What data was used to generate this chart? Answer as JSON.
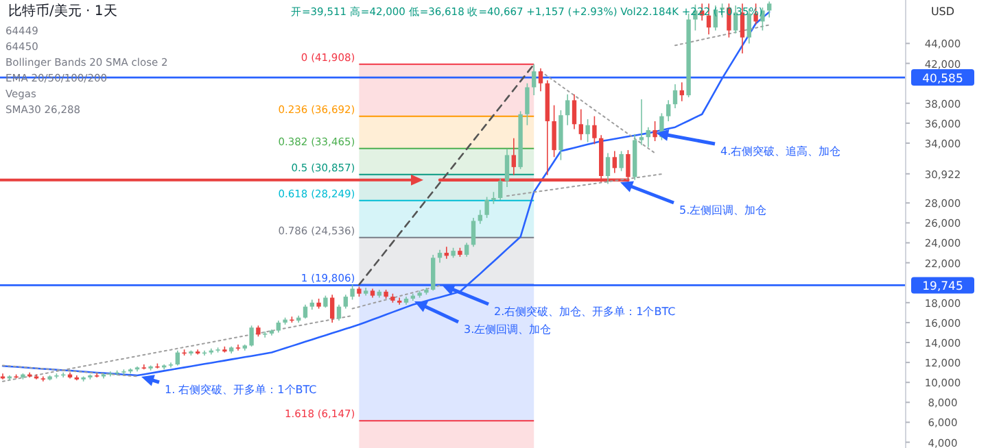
{
  "chart_data": {
    "type": "candlestick",
    "title": "比特币/美元 · 1天",
    "subtitle": "开=39,511 高=42,000 低=36,618 收=40,667 +1,157 (+2.93%) Vol22.184K +222 (+0.35%)",
    "ylabel": "USD",
    "categories": [
      null,
      null,
      null,
      null,
      null,
      null,
      null,
      null,
      null,
      null,
      null,
      null,
      null,
      null,
      null,
      null,
      null,
      null,
      null,
      null,
      null,
      null,
      null,
      null,
      null,
      null,
      null,
      null,
      null,
      null,
      null,
      null,
      null,
      null,
      null,
      null,
      null,
      null,
      null,
      null,
      null,
      null,
      null,
      null,
      null,
      null,
      null,
      null,
      null,
      null,
      null,
      null,
      null,
      null,
      null,
      null,
      null,
      null,
      null,
      null,
      null,
      null,
      null,
      null,
      null,
      null,
      null,
      null,
      null,
      null,
      null,
      null,
      null,
      null,
      null,
      null,
      null,
      null,
      null,
      null,
      null,
      null,
      null,
      null,
      null,
      null,
      null,
      null,
      null,
      null,
      null,
      null,
      null,
      null,
      null,
      null,
      null,
      null,
      null,
      null,
      null,
      null,
      null,
      null,
      null,
      null,
      null,
      null,
      null,
      null,
      null,
      null,
      null,
      null,
      null
    ],
    "ohlc": [
      [
        10600,
        10900,
        10300,
        10400
      ],
      [
        10400,
        10700,
        10200,
        10600
      ],
      [
        10600,
        10800,
        10400,
        10500
      ],
      [
        10500,
        10900,
        10300,
        10800
      ],
      [
        10800,
        11000,
        10500,
        10600
      ],
      [
        10600,
        10800,
        10300,
        10400
      ],
      [
        10400,
        10600,
        10100,
        10300
      ],
      [
        10300,
        10700,
        10200,
        10600
      ],
      [
        10600,
        10900,
        10400,
        10700
      ],
      [
        10700,
        11000,
        10500,
        10800
      ],
      [
        10800,
        11000,
        10400,
        10500
      ],
      [
        10500,
        10700,
        10200,
        10300
      ],
      [
        10300,
        10600,
        10100,
        10500
      ],
      [
        10500,
        10800,
        10300,
        10700
      ],
      [
        10700,
        10900,
        10500,
        10600
      ],
      [
        10600,
        10900,
        10400,
        10800
      ],
      [
        10800,
        11100,
        10600,
        10900
      ],
      [
        10900,
        11200,
        10700,
        11000
      ],
      [
        11000,
        11300,
        10800,
        11100
      ],
      [
        11100,
        11400,
        10900,
        11300
      ],
      [
        11300,
        11600,
        11100,
        11500
      ],
      [
        11500,
        11800,
        11300,
        11400
      ],
      [
        11400,
        11700,
        11200,
        11600
      ],
      [
        11600,
        11900,
        11400,
        11500
      ],
      [
        11500,
        11800,
        11300,
        11700
      ],
      [
        11700,
        12000,
        11500,
        11800
      ],
      [
        11800,
        13200,
        11700,
        13000
      ],
      [
        13000,
        13300,
        12700,
        12900
      ],
      [
        12900,
        13200,
        12700,
        13100
      ],
      [
        13100,
        13300,
        12800,
        12900
      ],
      [
        12900,
        13200,
        12700,
        13000
      ],
      [
        13000,
        13400,
        12800,
        13200
      ],
      [
        13200,
        13500,
        13000,
        13300
      ],
      [
        13300,
        13600,
        13000,
        13100
      ],
      [
        13100,
        13600,
        12900,
        13500
      ],
      [
        13500,
        13800,
        13200,
        13400
      ],
      [
        13400,
        13800,
        13200,
        13700
      ],
      [
        13700,
        15700,
        13600,
        15500
      ],
      [
        15500,
        15700,
        14600,
        14800
      ],
      [
        14800,
        15100,
        14500,
        14900
      ],
      [
        14900,
        15300,
        14700,
        15200
      ],
      [
        15200,
        16200,
        15000,
        16000
      ],
      [
        16000,
        16500,
        15800,
        16300
      ],
      [
        16300,
        16600,
        16000,
        16200
      ],
      [
        16200,
        16700,
        16000,
        16500
      ],
      [
        16500,
        17800,
        16400,
        17600
      ],
      [
        17600,
        18300,
        17300,
        18000
      ],
      [
        18000,
        18400,
        17400,
        17600
      ],
      [
        17600,
        18700,
        17500,
        18500
      ],
      [
        18500,
        18800,
        16000,
        16400
      ],
      [
        16400,
        17800,
        16200,
        17600
      ],
      [
        17600,
        18800,
        17400,
        18600
      ],
      [
        18600,
        19806,
        18300,
        19400
      ],
      [
        19400,
        19600,
        18600,
        18900
      ],
      [
        18900,
        19500,
        18700,
        19200
      ],
      [
        19200,
        19400,
        18500,
        18700
      ],
      [
        18700,
        19300,
        18500,
        19100
      ],
      [
        19100,
        19300,
        18400,
        18600
      ],
      [
        18600,
        18900,
        18000,
        18200
      ],
      [
        18200,
        18500,
        17800,
        18000
      ],
      [
        18000,
        18600,
        17800,
        18400
      ],
      [
        18400,
        18900,
        18200,
        18700
      ],
      [
        18700,
        19200,
        18500,
        19000
      ],
      [
        19000,
        19500,
        18800,
        19300
      ],
      [
        19300,
        22800,
        19200,
        22500
      ],
      [
        22500,
        23300,
        22000,
        23000
      ],
      [
        23000,
        23600,
        22400,
        22700
      ],
      [
        22700,
        23500,
        22500,
        23200
      ],
      [
        23200,
        23500,
        22600,
        22800
      ],
      [
        22800,
        24000,
        22600,
        23800
      ],
      [
        23800,
        26500,
        23600,
        26200
      ],
      [
        26200,
        27300,
        25900,
        26800
      ],
      [
        26800,
        28600,
        26500,
        28300
      ],
      [
        28300,
        29100,
        27900,
        28500
      ],
      [
        28500,
        30500,
        28300,
        30200
      ],
      [
        30200,
        33400,
        29600,
        32800
      ],
      [
        32800,
        34500,
        30800,
        31600
      ],
      [
        31600,
        37200,
        31400,
        36900
      ],
      [
        36900,
        40000,
        35800,
        39600
      ],
      [
        39600,
        41908,
        38800,
        41200
      ],
      [
        41200,
        41500,
        39200,
        40000
      ],
      [
        40000,
        40300,
        30800,
        36200
      ],
      [
        36200,
        37800,
        32600,
        33300
      ],
      [
        33300,
        37300,
        32300,
        36800
      ],
      [
        36800,
        38900,
        35800,
        38300
      ],
      [
        38300,
        38900,
        35400,
        35900
      ],
      [
        35900,
        37400,
        34300,
        34900
      ],
      [
        34900,
        36400,
        34100,
        35800
      ],
      [
        35800,
        36700,
        33900,
        34500
      ],
      [
        34500,
        34800,
        30100,
        30700
      ],
      [
        30700,
        33000,
        29900,
        32600
      ],
      [
        32600,
        33200,
        31000,
        31500
      ],
      [
        31500,
        33200,
        31200,
        32900
      ],
      [
        32900,
        33300,
        30100,
        30600
      ],
      [
        30600,
        34900,
        30300,
        34300
      ],
      [
        34300,
        38400,
        33800,
        34600
      ],
      [
        34600,
        35600,
        33600,
        35300
      ],
      [
        35300,
        36200,
        34200,
        34600
      ],
      [
        34600,
        37000,
        34300,
        36700
      ],
      [
        36700,
        38300,
        36200,
        37900
      ],
      [
        37900,
        39900,
        37500,
        39300
      ],
      [
        39300,
        40100,
        38200,
        38800
      ],
      [
        38800,
        47000,
        38600,
        46400
      ],
      [
        46400,
        47900,
        45300,
        47300
      ],
      [
        47300,
        48000,
        46300,
        46800
      ],
      [
        46800,
        48000,
        44900,
        45600
      ],
      [
        45600,
        47800,
        45300,
        47400
      ],
      [
        47400,
        48000,
        46600,
        47600
      ],
      [
        47600,
        48000,
        44600,
        45300
      ],
      [
        45300,
        47800,
        45000,
        47100
      ],
      [
        47100,
        48000,
        43000,
        44600
      ],
      [
        44600,
        47500,
        44000,
        47000
      ],
      [
        47000,
        48000,
        45900,
        46200
      ],
      [
        46200,
        47600,
        45300,
        47300
      ],
      [
        47300,
        48200,
        46600,
        48000
      ]
    ],
    "colors": [
      "#e8413f",
      "#79c3a5",
      "#e8413f",
      "#79c3a5",
      "#e8413f",
      "#e8413f",
      "#e8413f",
      "#79c3a5",
      "#79c3a5",
      "#79c3a5",
      "#e8413f",
      "#e8413f",
      "#79c3a5",
      "#79c3a5",
      "#e8413f",
      "#79c3a5",
      "#79c3a5",
      "#79c3a5",
      "#79c3a5",
      "#79c3a5",
      "#79c3a5",
      "#e8413f",
      "#79c3a5",
      "#e8413f",
      "#79c3a5",
      "#79c3a5",
      "#79c3a5",
      "#e8413f",
      "#79c3a5",
      "#e8413f",
      "#79c3a5",
      "#79c3a5",
      "#79c3a5",
      "#e8413f",
      "#79c3a5",
      "#e8413f",
      "#79c3a5",
      "#79c3a5",
      "#e8413f",
      "#79c3a5",
      "#79c3a5",
      "#79c3a5",
      "#79c3a5",
      "#e8413f",
      "#79c3a5",
      "#79c3a5",
      "#79c3a5",
      "#e8413f",
      "#79c3a5",
      "#e8413f",
      "#79c3a5",
      "#79c3a5",
      "#79c3a5",
      "#e8413f",
      "#79c3a5",
      "#e8413f",
      "#79c3a5",
      "#e8413f",
      "#e8413f",
      "#e8413f",
      "#79c3a5",
      "#79c3a5",
      "#79c3a5",
      "#79c3a5",
      "#79c3a5",
      "#79c3a5",
      "#e8413f",
      "#79c3a5",
      "#e8413f",
      "#79c3a5",
      "#79c3a5",
      "#79c3a5",
      "#79c3a5",
      "#79c3a5",
      "#79c3a5",
      "#79c3a5",
      "#e8413f",
      "#79c3a5",
      "#79c3a5",
      "#79c3a5",
      "#e8413f",
      "#e8413f",
      "#e8413f",
      "#79c3a5",
      "#79c3a5",
      "#e8413f",
      "#e8413f",
      "#79c3a5",
      "#e8413f",
      "#e8413f",
      "#79c3a5",
      "#e8413f",
      "#79c3a5",
      "#e8413f",
      "#79c3a5",
      "#79c3a5",
      "#79c3a5",
      "#e8413f",
      "#79c3a5",
      "#79c3a5",
      "#79c3a5",
      "#e8413f",
      "#79c3a5",
      "#79c3a5",
      "#e8413f",
      "#e8413f",
      "#79c3a5",
      "#79c3a5",
      "#e8413f",
      "#79c3a5",
      "#e8413f",
      "#79c3a5",
      "#e8413f",
      "#79c3a5",
      "#79c3a5"
    ],
    "series": [
      {
        "type": "line",
        "color": "#2962ff",
        "values": [
          11650,
          11600,
          11560,
          11510,
          11460,
          11410,
          11360,
          11320,
          11270,
          11220,
          11180,
          11130,
          11080,
          11030,
          10980,
          10940,
          10890,
          10840,
          10790,
          10750,
          10700,
          10810,
          10930,
          11040,
          11160,
          11270,
          11390,
          11500,
          11620,
          11730,
          11850,
          11960,
          12080,
          12190,
          12310,
          12420,
          12540,
          12650,
          12770,
          12880,
          13000,
          13220,
          13430,
          13650,
          13860,
          14080,
          14290,
          14510,
          14720,
          14940,
          15150,
          15370,
          15580,
          15800,
          16050,
          16300,
          16550,
          16800,
          17050,
          17300,
          17550,
          17800,
          17990,
          18170,
          18360,
          18540,
          18730,
          18910,
          19100,
          19700,
          20300,
          20900,
          21520,
          22130,
          22750,
          23370,
          23980,
          24600,
          26850,
          29100,
          30130,
          31150,
          32180,
          33200,
          33370,
          33530,
          33700,
          33870,
          34030,
          34200,
          34310,
          34430,
          34540,
          34660,
          34770,
          34890,
          35000,
          35150,
          35300,
          35450,
          35600,
          35930,
          36250,
          36580,
          36900,
          38100,
          39300,
          40500,
          41600,
          42700,
          43800,
          44900,
          46000,
          46580,
          47150
        ]
      },
      {
        "type": "line",
        "color": "#555555",
        "line_style": "dashed",
        "values": [
          null,
          null,
          null,
          null,
          null,
          null,
          null,
          null,
          null,
          null,
          null,
          null,
          null,
          null,
          null,
          null,
          null,
          null,
          null,
          null,
          null,
          null,
          null,
          null,
          null,
          null,
          null,
          null,
          null,
          null,
          null,
          null,
          null,
          null,
          null,
          null,
          null,
          null,
          null,
          null,
          null,
          null,
          null,
          null,
          null,
          null,
          null,
          null,
          null,
          null,
          null,
          null,
          null,
          19806,
          20656,
          21506,
          22356,
          23206,
          24056,
          24906,
          25756,
          26606,
          27456,
          28307,
          29157,
          30007,
          30857,
          31707,
          32557,
          33407,
          34257,
          35107,
          35957,
          36807,
          37657,
          38507,
          39357,
          40207,
          41058,
          41908,
          null,
          null,
          null,
          null,
          null,
          null,
          null,
          null,
          null,
          null,
          null,
          null,
          null,
          null,
          null,
          null,
          null,
          null,
          null,
          null,
          null,
          null,
          null,
          null,
          null,
          null,
          null,
          null,
          null,
          null,
          null,
          null,
          null,
          null,
          null
        ]
      },
      {
        "type": "line",
        "color": "#e8413f",
        "values": [
          null,
          null,
          null,
          null,
          null,
          null,
          null,
          null,
          null,
          null,
          null,
          null,
          null,
          null,
          null,
          null,
          null,
          null,
          null,
          null,
          null,
          null,
          null,
          null,
          null,
          null,
          null,
          null,
          null,
          null,
          null,
          null,
          null,
          null,
          null,
          null,
          null,
          null,
          null,
          null,
          null,
          null,
          null,
          null,
          null,
          null,
          null,
          null,
          null,
          null,
          null,
          null,
          null,
          null,
          null,
          null,
          null,
          null,
          null,
          null,
          null,
          null,
          null,
          null,
          null,
          30300,
          30300,
          30300,
          30300,
          30300,
          30300,
          30300,
          30300,
          30300,
          30300,
          30300,
          30300,
          30300,
          30300,
          30300,
          30300,
          30300,
          30300,
          30300,
          30300,
          30300,
          30300,
          30300,
          30300,
          30300,
          30300,
          30300,
          30300,
          30300,
          null,
          null,
          null,
          null,
          null,
          null,
          null,
          null,
          null,
          null,
          null,
          null,
          null,
          null,
          null,
          null,
          null,
          null,
          null,
          null,
          null
        ]
      },
      {
        "type": "line",
        "color": "#9e9e9e",
        "line_style": "dotted",
        "values": [
          11700,
          11645,
          11590,
          11535,
          11480,
          11425,
          11370,
          11315,
          11260,
          11205,
          11150,
          11095,
          11040,
          10985,
          10930,
          10875,
          10820,
          10765,
          10710,
          10655,
          10600,
          null,
          null,
          null,
          null,
          null,
          null,
          null,
          null,
          null,
          null,
          null,
          null,
          null,
          null,
          null,
          null,
          null,
          null,
          null,
          null,
          null,
          null,
          null,
          null,
          null,
          null,
          null,
          null,
          null,
          null,
          null,
          null,
          null,
          null,
          null,
          null,
          null,
          null,
          null,
          null,
          null,
          null,
          null,
          null,
          null,
          null,
          null,
          null,
          null,
          null,
          null,
          null,
          null,
          null,
          null,
          null,
          null,
          null,
          null,
          null,
          null,
          null,
          null,
          null,
          null,
          null,
          null,
          null,
          null,
          null,
          null,
          null,
          null,
          null,
          null,
          null,
          null,
          null,
          null,
          null,
          null,
          null,
          null,
          null,
          null,
          null,
          null,
          null,
          null,
          null,
          null,
          null,
          null,
          null
        ]
      },
      {
        "type": "line",
        "color": "#9e9e9e",
        "line_style": "dotted",
        "values": [
          10100,
          10230,
          10350,
          10480,
          10610,
          10730,
          10860,
          10990,
          11120,
          11240,
          11370,
          11500,
          11620,
          11750,
          11880,
          12000,
          12130,
          12260,
          12380,
          12510,
          12640,
          12770,
          12890,
          13020,
          13150,
          13270,
          13400,
          13530,
          13650,
          13780,
          13910,
          14030,
          14160,
          14290,
          14420,
          14540,
          14670,
          14800,
          14920,
          15050,
          15180,
          15300,
          15430,
          15560,
          15680,
          15810,
          15940,
          16070,
          16190,
          16320,
          16450,
          16570,
          16700,
          null,
          null,
          null,
          null,
          null,
          null,
          null,
          null,
          null,
          null,
          null,
          null,
          null,
          null,
          null,
          null,
          null,
          null,
          null,
          null,
          null,
          null,
          null,
          null,
          null,
          null,
          null,
          null,
          null,
          null,
          null,
          null,
          null,
          null,
          null,
          null,
          null,
          null,
          null,
          null,
          null,
          null,
          null,
          null,
          null,
          null,
          null,
          null,
          null,
          null,
          null,
          null,
          null,
          null,
          null,
          null,
          null,
          null,
          null,
          null,
          null,
          null
        ]
      },
      {
        "type": "line",
        "color": "#9e9e9e",
        "line_style": "dotted",
        "values": [
          null,
          null,
          null,
          null,
          null,
          null,
          null,
          null,
          null,
          null,
          null,
          null,
          null,
          null,
          null,
          null,
          null,
          null,
          null,
          null,
          null,
          null,
          null,
          null,
          null,
          null,
          null,
          null,
          null,
          null,
          null,
          null,
          null,
          null,
          null,
          null,
          null,
          null,
          null,
          null,
          null,
          null,
          null,
          null,
          null,
          null,
          null,
          null,
          null,
          null,
          null,
          null,
          17400,
          17580,
          17760,
          17940,
          18110,
          18290,
          18470,
          18650,
          18830,
          19010,
          19190,
          19360,
          19540,
          19720,
          null,
          null,
          null,
          null,
          null,
          null,
          null,
          null,
          null,
          null,
          null,
          null,
          null,
          null,
          null,
          null,
          null,
          null,
          null,
          null,
          null,
          null,
          null,
          null,
          null,
          null,
          null,
          null,
          null,
          null,
          null,
          null,
          null,
          null,
          null,
          null,
          null,
          null,
          null,
          null,
          null,
          null,
          null,
          null,
          null,
          null,
          null,
          null,
          null
        ]
      },
      {
        "type": "line",
        "color": "#9e9e9e",
        "line_style": "dotted",
        "values": [
          null,
          null,
          null,
          null,
          null,
          null,
          null,
          null,
          null,
          null,
          null,
          null,
          null,
          null,
          null,
          null,
          null,
          null,
          null,
          null,
          null,
          null,
          null,
          null,
          null,
          null,
          null,
          null,
          null,
          null,
          null,
          null,
          null,
          null,
          null,
          null,
          null,
          null,
          null,
          null,
          null,
          null,
          null,
          null,
          null,
          null,
          null,
          null,
          null,
          null,
          null,
          null,
          null,
          null,
          null,
          null,
          null,
          null,
          null,
          null,
          null,
          null,
          null,
          null,
          null,
          null,
          null,
          null,
          null,
          null,
          null,
          null,
          null,
          null,
          null,
          null,
          null,
          null,
          null,
          null,
          41200,
          40720,
          40240,
          39750,
          39270,
          38790,
          38310,
          37820,
          37340,
          36860,
          36380,
          35890,
          35410,
          34930,
          34450,
          33960,
          33480,
          33000,
          null,
          null,
          null,
          null,
          null,
          null,
          null,
          null,
          null,
          null,
          null,
          null,
          null,
          null,
          null,
          null,
          null
        ]
      },
      {
        "type": "line",
        "color": "#9e9e9e",
        "line_style": "dotted",
        "values": [
          null,
          null,
          null,
          null,
          null,
          null,
          null,
          null,
          null,
          null,
          null,
          null,
          null,
          null,
          null,
          null,
          null,
          null,
          null,
          null,
          null,
          null,
          null,
          null,
          null,
          null,
          null,
          null,
          null,
          null,
          null,
          null,
          null,
          null,
          null,
          null,
          null,
          null,
          null,
          null,
          null,
          null,
          null,
          null,
          null,
          null,
          null,
          null,
          null,
          null,
          null,
          null,
          null,
          null,
          null,
          null,
          null,
          null,
          null,
          null,
          null,
          null,
          null,
          null,
          null,
          null,
          null,
          null,
          null,
          null,
          null,
          null,
          null,
          null,
          null,
          28700,
          28800,
          28890,
          28990,
          29080,
          29180,
          29270,
          29370,
          29470,
          29560,
          29660,
          29750,
          29850,
          29940,
          30040,
          30130,
          30230,
          30320,
          30420,
          30520,
          30610,
          30710,
          30800,
          30900,
          null,
          null,
          null,
          null,
          null,
          null,
          null,
          null,
          null,
          null,
          null,
          null,
          null,
          null,
          null,
          null
        ]
      },
      {
        "type": "line",
        "color": "#9e9e9e",
        "line_style": "dotted",
        "values": [
          null,
          null,
          null,
          null,
          null,
          null,
          null,
          null,
          null,
          null,
          null,
          null,
          null,
          null,
          null,
          null,
          null,
          null,
          null,
          null,
          null,
          null,
          null,
          null,
          null,
          null,
          null,
          null,
          null,
          null,
          null,
          null,
          null,
          null,
          null,
          null,
          null,
          null,
          null,
          null,
          null,
          null,
          null,
          null,
          null,
          null,
          null,
          null,
          null,
          null,
          null,
          null,
          null,
          null,
          null,
          null,
          null,
          null,
          null,
          null,
          null,
          null,
          null,
          null,
          null,
          null,
          null,
          null,
          null,
          null,
          null,
          null,
          null,
          null,
          null,
          null,
          null,
          null,
          null,
          null,
          null,
          null,
          null,
          null,
          null,
          null,
          null,
          null,
          null,
          null,
          null,
          null,
          null,
          null,
          null,
          null,
          null,
          null,
          null,
          null,
          43800,
          43950,
          44090,
          44240,
          44390,
          44540,
          44680,
          44830,
          44970,
          45120,
          45270,
          45420,
          45560,
          45710,
          45860
        ]
      }
    ],
    "bands": [
      {
        "axis": "y",
        "from": 36692,
        "to": 41908,
        "label": "0 (41,908)",
        "color": "#f23645"
      },
      {
        "axis": "y",
        "from": 33465,
        "to": 36692,
        "label": "0.236 (36,692)",
        "color": "#ff9800"
      },
      {
        "axis": "y",
        "from": 30857,
        "to": 33465,
        "label": "0.382 (33,465)",
        "color": "#4caf50"
      },
      {
        "axis": "y",
        "from": 28249,
        "to": 30857,
        "label": "0.5 (30,857)",
        "color": "#089981"
      },
      {
        "axis": "y",
        "from": 24536,
        "to": 28249,
        "label": "0.618 (28,249)",
        "color": "#00bcd4"
      },
      {
        "axis": "y",
        "from": 19806,
        "to": 24536,
        "label": "0.786 (24,536)",
        "color": "#787b86"
      },
      {
        "axis": "y",
        "from": 6147,
        "to": 19806,
        "label": "1 (19,806)",
        "color": "#2962ff"
      },
      {
        "axis": "y",
        "from": 3420,
        "to": 6147,
        "label": "1.618 (6,147)",
        "color": "#f23645"
      }
    ],
    "ref_lines": [
      {
        "axis": "y",
        "value": 40585,
        "label": "40,585",
        "color": "#2962ff"
      },
      {
        "axis": "y",
        "value": 19745,
        "label": "19,745",
        "color": "#2962ff"
      }
    ],
    "annotations": [
      "64449",
      "64450",
      "Bollinger Bands 20 SMA close 2",
      "EMA 20/50/100/200",
      "Vegas",
      "SMA30 26,288",
      "1. 右侧突破、开多单：1个BTC",
      "2.右侧突破、加仓、开多单：1个BTC",
      "3.左侧回调、加仓",
      "4.右侧突破、追高、加仓",
      "5.左侧回调、加仓"
    ],
    "ylim": [
      3420,
      48357
    ],
    "yticks": [
      {
        "value": 4000,
        "label": "4,000"
      },
      {
        "value": 6000,
        "label": "6,000"
      },
      {
        "value": 8000,
        "label": "8,000"
      },
      {
        "value": 10000,
        "label": "10,000"
      },
      {
        "value": 12000,
        "label": "12,000"
      },
      {
        "value": 14000,
        "label": "14,000"
      },
      {
        "value": 16000,
        "label": "16,000"
      },
      {
        "value": 18000,
        "label": "18,000"
      },
      {
        "value": 22000,
        "label": "22,000"
      },
      {
        "value": 24000,
        "label": "24,000"
      },
      {
        "value": 26000,
        "label": "26,000"
      },
      {
        "value": 28000,
        "label": "28,000"
      },
      {
        "value": 30922,
        "label": "30,922"
      },
      {
        "value": 34000,
        "label": "34,000"
      },
      {
        "value": 36000,
        "label": "36,000"
      },
      {
        "value": 38000,
        "label": "38,000"
      },
      {
        "value": 42000,
        "label": "42,000"
      },
      {
        "value": 44000,
        "label": "44,000"
      }
    ],
    "tick_labels": "y"
  }
}
